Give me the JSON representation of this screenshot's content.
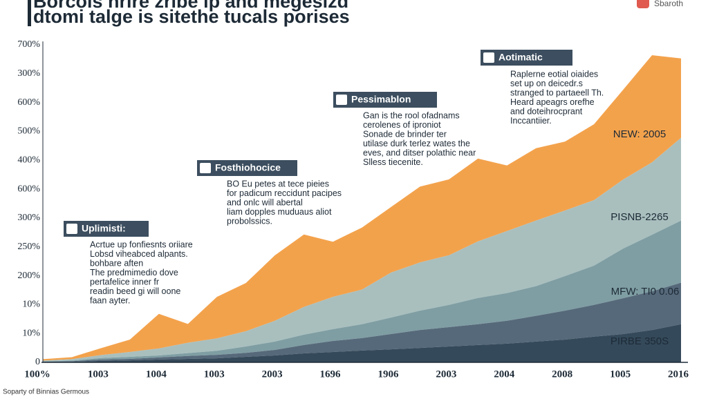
{
  "title_lines": [
    "Borcois hrire zribe ip and megesizd",
    "dtomi talge is sitethe tucals porises"
  ],
  "brand": "Sbaroth",
  "footer": "Soparty of Binnias Germous",
  "chart_data": {
    "type": "area",
    "ylim": [
      0,
      11
    ],
    "ylabels": [
      "700%",
      "300%",
      "600%",
      "500%",
      "400%",
      "600%",
      "300%",
      "250%",
      "200%",
      "10%",
      "10%",
      "0"
    ],
    "categories": [
      "100%",
      null,
      "1003",
      null,
      "1004",
      null,
      "1003",
      null,
      "2003",
      null,
      "1696",
      null,
      "1906",
      null,
      "2003",
      null,
      "2004",
      null,
      "2008",
      null,
      "1005",
      null,
      "2016"
    ],
    "series": [
      {
        "color": "#34495a",
        "values": [
          0,
          0.02,
          0.05,
          0.07,
          0.1,
          0.12,
          0.14,
          0.19,
          0.24,
          0.31,
          0.36,
          0.41,
          0.45,
          0.5,
          0.55,
          0.6,
          0.65,
          0.72,
          0.79,
          0.89,
          0.98,
          1.12,
          1.32
        ]
      },
      {
        "color": "#56697a",
        "values": [
          0.02,
          0.02,
          0.05,
          0.05,
          0.07,
          0.1,
          0.12,
          0.14,
          0.19,
          0.29,
          0.38,
          0.43,
          0.53,
          0.62,
          0.67,
          0.72,
          0.79,
          0.89,
          1.0,
          1.1,
          1.24,
          1.34,
          1.44
        ]
      },
      {
        "color": "#7f9ea3",
        "values": [
          0.02,
          0.02,
          0.05,
          0.07,
          0.07,
          0.1,
          0.14,
          0.22,
          0.29,
          0.36,
          0.41,
          0.48,
          0.57,
          0.67,
          0.77,
          0.91,
          0.96,
          1.03,
          1.2,
          1.36,
          1.72,
          1.96,
          2.15
        ]
      },
      {
        "color": "#a9bfbe",
        "values": [
          0.02,
          0.05,
          0.1,
          0.17,
          0.24,
          0.36,
          0.43,
          0.53,
          0.72,
          0.96,
          1.12,
          1.2,
          1.56,
          1.67,
          1.72,
          1.96,
          2.15,
          2.27,
          2.27,
          2.27,
          2.39,
          2.51,
          2.87
        ]
      },
      {
        "color": "#f3a24c",
        "values": [
          0.05,
          0.07,
          0.24,
          0.43,
          1.2,
          0.65,
          1.44,
          1.67,
          2.27,
          2.51,
          1.91,
          2.15,
          2.27,
          2.63,
          2.63,
          2.87,
          2.27,
          2.51,
          2.39,
          2.63,
          3.11,
          3.71,
          2.75
        ]
      }
    ],
    "side_labels": [
      "NEW: 2005",
      "PISNB-2265",
      "MFW: TI0 0.06",
      "PIRBE 350S"
    ],
    "annotations": [
      {
        "title": "Uplimisti:",
        "lines": [
          "Acrtue up fonfiesnts oriiare",
          "Lobsd viheabced alpants.",
          "bohbare aften",
          "The predmimedio dove",
          "pertafelice inner fr",
          "readin beed gi will oone",
          "faan ayter."
        ]
      },
      {
        "title": "Fosthiohocice",
        "lines": [
          "BO Eu petes at tece pieies",
          "for padicum reccidunt pacipes",
          "and onlc will abertal",
          "liam dopples muduaus aliot",
          "probolssics."
        ]
      },
      {
        "title": "Pessimablon",
        "lines": [
          "Gan is the rool ofadnams",
          "cerolenes of iproniot",
          "Sonade de brinder ter",
          "utilase durk terlez wates the",
          "eves, and ditser polathic near",
          "Slless tiecenite."
        ]
      },
      {
        "title": "Aotimatic",
        "lines": [
          "Raplerne eotial oiaides",
          "set up on deicedr.s",
          "stranged to partaeell Th.",
          "Heard apeagrs orefhe",
          "and doteihrocprant",
          "Inccantiier."
        ]
      }
    ]
  }
}
